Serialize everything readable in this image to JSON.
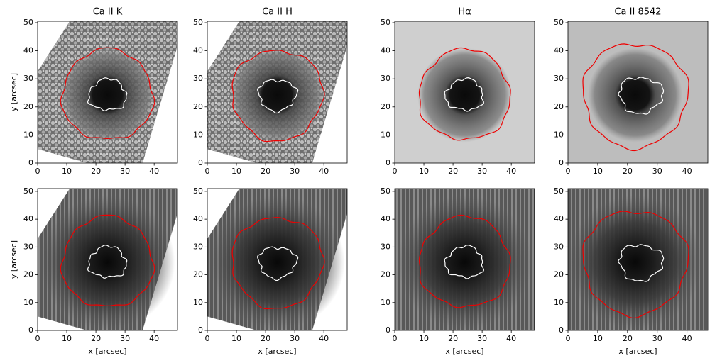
{
  "chart_data": [
    {
      "type": "image",
      "title": "Ca II K",
      "ylabel": "y [arcsec]",
      "xlim": [
        0,
        48
      ],
      "ylim": [
        0,
        50.5
      ],
      "xticks": [
        0,
        10,
        20,
        30,
        40
      ],
      "yticks": [
        0,
        10,
        20,
        30,
        40,
        50
      ]
    },
    {
      "type": "image",
      "title": "Ca II H",
      "xlim": [
        0,
        48
      ],
      "ylim": [
        0,
        50.5
      ],
      "xticks": [
        0,
        10,
        20,
        30,
        40
      ],
      "yticks": [
        0,
        10,
        20,
        30,
        40,
        50
      ]
    },
    {
      "type": "image",
      "title": "Hα",
      "xlim": [
        0,
        48
      ],
      "ylim": [
        0,
        50.5
      ],
      "xticks": [
        0,
        10,
        20,
        30,
        40
      ],
      "yticks": [
        0,
        10,
        20,
        30,
        40,
        50
      ]
    },
    {
      "type": "image",
      "title": "Ca II 8542",
      "xlim": [
        0,
        47
      ],
      "ylim": [
        0,
        50.5
      ],
      "xticks": [
        0,
        10,
        20,
        30,
        40
      ],
      "yticks": [
        0,
        10,
        20,
        30,
        40,
        50
      ]
    },
    {
      "type": "image",
      "ylabel": "y [arcsec]",
      "xlabel": "x [arcsec]",
      "xlim": [
        0,
        48
      ],
      "ylim": [
        0,
        51
      ],
      "xticks": [
        0,
        10,
        20,
        30,
        40
      ],
      "yticks": [
        0,
        10,
        20,
        30,
        40,
        50
      ]
    },
    {
      "type": "image",
      "xlabel": "x [arcsec]",
      "xlim": [
        0,
        48
      ],
      "ylim": [
        0,
        51
      ],
      "xticks": [
        0,
        10,
        20,
        30,
        40
      ],
      "yticks": [
        0,
        10,
        20,
        30,
        40,
        50
      ]
    },
    {
      "type": "image",
      "xlabel": "x [arcsec]",
      "xlim": [
        0,
        48
      ],
      "ylim": [
        0,
        51
      ],
      "xticks": [
        0,
        10,
        20,
        30,
        40
      ],
      "yticks": [
        0,
        10,
        20,
        30,
        40,
        50
      ]
    },
    {
      "type": "image",
      "xlabel": "x [arcsec]",
      "xlim": [
        0,
        47
      ],
      "ylim": [
        0,
        51
      ],
      "xticks": [
        0,
        10,
        20,
        30,
        40
      ],
      "yticks": [
        0,
        10,
        20,
        30,
        40,
        50
      ]
    }
  ]
}
